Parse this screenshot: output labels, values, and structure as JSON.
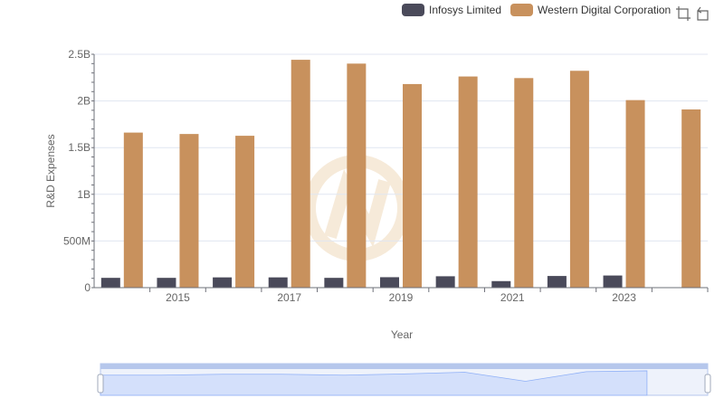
{
  "legend": {
    "series1": "Infosys Limited",
    "series2": "Western Digital Corporation"
  },
  "toolbar": {
    "zoom_icon": "zoom-select-icon",
    "restore_icon": "restore-icon"
  },
  "colors": {
    "series1": "#4a4a5a",
    "series2": "#c8915d",
    "grid": "#e0e6f1",
    "axis": "#6e7079",
    "zoom_fill": "#d4e0fb",
    "zoom_border": "#b6c7ec"
  },
  "chart_data": {
    "type": "bar",
    "title": "",
    "xlabel": "Year",
    "ylabel": "R&D Expenses",
    "ylim": [
      0,
      2500000000
    ],
    "y_ticks": [
      "0",
      "500M",
      "1B",
      "1.5B",
      "2B",
      "2.5B"
    ],
    "categories": [
      "2014",
      "2015",
      "2016",
      "2017",
      "2018",
      "2019",
      "2020",
      "2021",
      "2022",
      "2023",
      "2024"
    ],
    "x_tick_labels": [
      "2015",
      "2017",
      "2019",
      "2021",
      "2023"
    ],
    "series": [
      {
        "name": "Infosys Limited",
        "values": [
          105000000,
          105000000,
          110000000,
          110000000,
          105000000,
          112000000,
          122000000,
          70000000,
          125000000,
          130000000,
          null
        ]
      },
      {
        "name": "Western Digital Corporation",
        "values": [
          1661000000,
          1646000000,
          1627000000,
          2441000000,
          2400000000,
          2181000000,
          2262000000,
          2245000000,
          2323000000,
          2009000000,
          1909000000
        ]
      }
    ],
    "datazoom": {
      "start": 0,
      "end": 100
    }
  }
}
